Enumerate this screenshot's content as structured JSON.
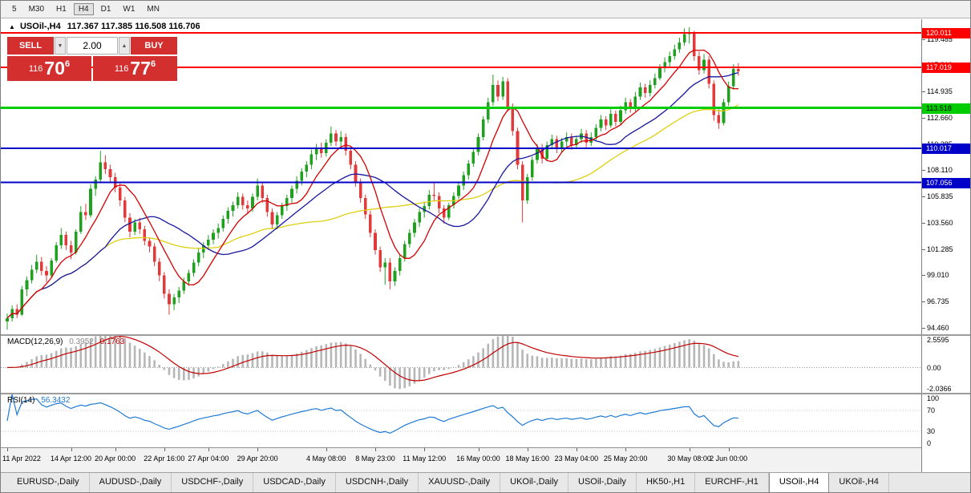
{
  "toolbar": {
    "timeframes": [
      "5",
      "M30",
      "H1",
      "H4",
      "D1",
      "W1",
      "MN"
    ],
    "active_timeframe": "H4"
  },
  "chart": {
    "marker": "▲",
    "title_symbol": "USOil-,H4",
    "title_ohlc": "117.367 117.385 116.508 116.706",
    "trade_panel": {
      "sell_label": "SELL",
      "buy_label": "BUY",
      "volume_value": "2.00",
      "spinner_up": "▲",
      "spinner_down": "▼",
      "bid": {
        "small": "116",
        "big": "70",
        "sup": "6"
      },
      "ask": {
        "small": "116",
        "big": "77",
        "sup": "6"
      }
    },
    "macd_label": {
      "name": "MACD(12,26,9)",
      "main_value": "0.3952",
      "signal_value": "0.1763"
    },
    "rsi_label": {
      "name": "RSI(14)",
      "value": "56.3432"
    }
  },
  "chart_data": {
    "type": "candlestick",
    "title": "USOil-,H4",
    "symbol": "USOil-",
    "timeframe": "H4",
    "last_ohlc": {
      "open": 117.367,
      "high": 117.385,
      "low": 116.508,
      "close": 116.706
    },
    "colors": {
      "up": "#1fa11f",
      "down": "#e13a3a",
      "ma_fast": "#d40000",
      "ma_mid": "#1616a0",
      "ma_slow": "#e0cf10",
      "macd_hist": "#b6b6b6",
      "macd_signal": "#c00000",
      "rsi_line": "#1d7ad4",
      "level_red": "#ff0000",
      "level_green": "#00cc00",
      "level_blue": "#0000c8"
    },
    "y_axis": {
      "min": 93.9,
      "max": 121.2,
      "ticks": [
        "119.485",
        "117.210",
        "114.935",
        "112.660",
        "110.385",
        "108.110",
        "105.835",
        "103.560",
        "101.285",
        "99.010",
        "96.735",
        "94.460"
      ]
    },
    "levels": [
      {
        "price": 120.011,
        "label": "120.011",
        "color": "#ff0000",
        "width": 2,
        "text_color": "#ffffff"
      },
      {
        "price": 117.019,
        "label": "117.019",
        "color": "#ff0000",
        "width": 2,
        "text_color": "#ffffff"
      },
      {
        "price": 113.518,
        "label": "113.518",
        "color": "#00cc00",
        "width": 3,
        "text_color": "#000000"
      },
      {
        "price": 110.017,
        "label": "110.017",
        "color": "#0000c8",
        "width": 2,
        "text_color": "#ffffff"
      },
      {
        "price": 107.056,
        "label": "107.056",
        "color": "#0000c8",
        "width": 2,
        "text_color": "#ffffff"
      }
    ],
    "x_axis": {
      "labels": [
        {
          "text": "11 Apr 2022",
          "index": 0
        },
        {
          "text": "14 Apr 12:00",
          "index": 13
        },
        {
          "text": "20 Apr 00:00",
          "index": 22
        },
        {
          "text": "22 Apr 16:00",
          "index": 32
        },
        {
          "text": "27 Apr 04:00",
          "index": 41
        },
        {
          "text": "29 Apr 20:00",
          "index": 51
        },
        {
          "text": "4 May 08:00",
          "index": 65
        },
        {
          "text": "8 May 23:00",
          "index": 75
        },
        {
          "text": "11 May 12:00",
          "index": 85
        },
        {
          "text": "16 May 00:00",
          "index": 96
        },
        {
          "text": "18 May 16:00",
          "index": 106
        },
        {
          "text": "23 May 04:00",
          "index": 116
        },
        {
          "text": "25 May 20:00",
          "index": 126
        },
        {
          "text": "30 May 08:00",
          "index": 139
        },
        {
          "text": "2 Jun 00:00",
          "index": 147
        }
      ]
    },
    "macd": {
      "params": [
        12,
        26,
        9
      ],
      "range": [
        -2.0366,
        2.5595
      ],
      "ticks": [
        {
          "text": "2.5595",
          "value": 2.5595
        },
        {
          "text": "0.00",
          "value": 0
        },
        {
          "text": "-2.0366",
          "value": -2.0366
        }
      ]
    },
    "rsi": {
      "period": 14,
      "levels": [
        70,
        30
      ],
      "ticks": [
        {
          "text": "100",
          "value": 100
        },
        {
          "text": "70",
          "value": 70
        },
        {
          "text": "30",
          "value": 30
        },
        {
          "text": "0",
          "value": 0
        }
      ]
    },
    "candles": [
      [
        95.0,
        95.7,
        94.3,
        95.3
      ],
      [
        95.3,
        96.4,
        95.0,
        96.1
      ],
      [
        96.1,
        96.5,
        95.3,
        95.6
      ],
      [
        95.6,
        98.1,
        95.5,
        97.8
      ],
      [
        97.8,
        98.9,
        97.2,
        98.6
      ],
      [
        98.6,
        99.9,
        98.3,
        99.5
      ],
      [
        99.5,
        100.8,
        99.2,
        100.2
      ],
      [
        100.2,
        100.6,
        99.0,
        99.4
      ],
      [
        99.4,
        99.8,
        98.4,
        99.0
      ],
      [
        99.0,
        100.5,
        98.8,
        100.3
      ],
      [
        100.3,
        101.9,
        100.1,
        101.6
      ],
      [
        101.6,
        103.1,
        101.3,
        102.5
      ],
      [
        102.5,
        102.8,
        101.2,
        101.6
      ],
      [
        101.6,
        102.0,
        100.4,
        101.0
      ],
      [
        101.0,
        103.0,
        100.8,
        102.8
      ],
      [
        102.8,
        105.0,
        102.6,
        104.5
      ],
      [
        104.5,
        105.2,
        103.8,
        104.2
      ],
      [
        104.2,
        106.9,
        104.0,
        106.5
      ],
      [
        106.5,
        107.6,
        105.9,
        107.3
      ],
      [
        107.3,
        109.8,
        107.0,
        108.8
      ],
      [
        108.8,
        109.4,
        107.8,
        108.2
      ],
      [
        108.2,
        108.6,
        107.0,
        107.5
      ],
      [
        107.5,
        107.9,
        106.2,
        106.6
      ],
      [
        106.6,
        107.0,
        105.0,
        105.5
      ],
      [
        105.5,
        105.8,
        103.6,
        104.0
      ],
      [
        104.0,
        104.4,
        102.3,
        102.8
      ],
      [
        102.8,
        103.9,
        102.5,
        103.6
      ],
      [
        103.6,
        104.0,
        102.6,
        103.0
      ],
      [
        103.0,
        103.3,
        101.6,
        102.0
      ],
      [
        102.0,
        102.3,
        101.0,
        101.5
      ],
      [
        101.5,
        101.8,
        99.8,
        100.2
      ],
      [
        100.2,
        100.5,
        98.5,
        99.0
      ],
      [
        99.0,
        99.3,
        97.0,
        97.4
      ],
      [
        97.4,
        97.8,
        95.6,
        96.5
      ],
      [
        96.5,
        97.4,
        96.0,
        97.1
      ],
      [
        97.1,
        98.0,
        96.6,
        97.7
      ],
      [
        97.7,
        98.8,
        97.4,
        98.5
      ],
      [
        98.5,
        99.5,
        98.1,
        99.2
      ],
      [
        99.2,
        100.4,
        98.9,
        100.1
      ],
      [
        100.1,
        101.4,
        99.8,
        101.0
      ],
      [
        101.0,
        101.9,
        100.5,
        101.6
      ],
      [
        101.6,
        102.5,
        101.2,
        102.1
      ],
      [
        102.1,
        103.0,
        101.7,
        102.7
      ],
      [
        102.7,
        103.5,
        102.2,
        103.1
      ],
      [
        103.1,
        104.2,
        102.8,
        103.9
      ],
      [
        103.9,
        104.9,
        103.5,
        104.6
      ],
      [
        104.6,
        105.4,
        104.1,
        105.1
      ],
      [
        105.1,
        106.2,
        104.8,
        105.8
      ],
      [
        105.8,
        106.1,
        104.7,
        105.1
      ],
      [
        105.1,
        105.5,
        104.3,
        104.8
      ],
      [
        104.8,
        106.1,
        104.5,
        105.8
      ],
      [
        105.8,
        107.4,
        105.5,
        106.8
      ],
      [
        106.8,
        107.1,
        105.3,
        105.7
      ],
      [
        105.7,
        106.0,
        104.1,
        104.5
      ],
      [
        104.5,
        104.8,
        103.0,
        103.4
      ],
      [
        103.4,
        104.5,
        103.0,
        104.2
      ],
      [
        104.2,
        105.3,
        103.9,
        105.0
      ],
      [
        105.0,
        106.0,
        104.6,
        105.7
      ],
      [
        105.7,
        106.8,
        105.3,
        106.5
      ],
      [
        106.5,
        107.6,
        106.1,
        107.2
      ],
      [
        107.2,
        108.3,
        106.8,
        108.0
      ],
      [
        108.0,
        108.9,
        107.5,
        108.6
      ],
      [
        108.6,
        109.9,
        108.2,
        109.5
      ],
      [
        109.5,
        110.4,
        109.0,
        110.1
      ],
      [
        110.1,
        110.5,
        109.2,
        109.6
      ],
      [
        109.6,
        110.8,
        109.3,
        110.5
      ],
      [
        110.5,
        111.9,
        110.2,
        111.3
      ],
      [
        111.3,
        111.6,
        110.2,
        110.6
      ],
      [
        110.6,
        111.5,
        110.0,
        111.0
      ],
      [
        111.0,
        111.3,
        109.4,
        109.8
      ],
      [
        109.8,
        110.1,
        108.2,
        108.6
      ],
      [
        108.6,
        108.9,
        106.7,
        107.1
      ],
      [
        107.1,
        107.4,
        105.3,
        105.7
      ],
      [
        105.7,
        106.0,
        103.9,
        104.3
      ],
      [
        104.3,
        104.6,
        102.3,
        102.7
      ],
      [
        102.7,
        103.0,
        100.8,
        101.2
      ],
      [
        101.2,
        101.5,
        99.3,
        99.7
      ],
      [
        99.7,
        100.5,
        98.2,
        100.1
      ],
      [
        100.1,
        100.5,
        97.8,
        98.5
      ],
      [
        98.5,
        99.7,
        98.1,
        99.4
      ],
      [
        99.4,
        100.8,
        99.0,
        100.5
      ],
      [
        100.5,
        102.0,
        100.2,
        101.7
      ],
      [
        101.7,
        103.0,
        101.4,
        102.7
      ],
      [
        102.7,
        103.9,
        102.3,
        103.6
      ],
      [
        103.6,
        104.8,
        103.2,
        104.5
      ],
      [
        104.5,
        105.4,
        104.0,
        105.0
      ],
      [
        105.0,
        106.4,
        104.7,
        106.0
      ],
      [
        106.0,
        107.0,
        105.5,
        105.9
      ],
      [
        105.9,
        106.2,
        104.4,
        104.8
      ],
      [
        104.8,
        105.1,
        103.5,
        104.0
      ],
      [
        104.0,
        105.3,
        103.8,
        105.1
      ],
      [
        105.1,
        106.2,
        104.8,
        105.9
      ],
      [
        105.9,
        107.1,
        105.6,
        106.8
      ],
      [
        106.8,
        108.0,
        106.4,
        107.7
      ],
      [
        107.7,
        109.0,
        107.3,
        108.7
      ],
      [
        108.7,
        110.0,
        108.4,
        109.7
      ],
      [
        109.7,
        111.3,
        109.4,
        111.0
      ],
      [
        111.0,
        112.8,
        110.7,
        112.5
      ],
      [
        112.5,
        114.4,
        112.2,
        114.0
      ],
      [
        114.0,
        116.4,
        113.7,
        115.5
      ],
      [
        115.5,
        115.9,
        114.1,
        114.5
      ],
      [
        114.5,
        116.2,
        114.2,
        115.8
      ],
      [
        115.8,
        116.1,
        113.2,
        113.6
      ],
      [
        113.6,
        113.9,
        111.1,
        111.5
      ],
      [
        111.5,
        111.8,
        108.2,
        108.6
      ],
      [
        108.6,
        108.9,
        103.6,
        105.5
      ],
      [
        105.5,
        107.8,
        105.2,
        107.5
      ],
      [
        107.5,
        109.3,
        107.2,
        109.0
      ],
      [
        109.0,
        110.4,
        108.7,
        110.1
      ],
      [
        110.1,
        110.4,
        108.7,
        109.1
      ],
      [
        109.1,
        110.6,
        108.9,
        110.3
      ],
      [
        110.3,
        111.2,
        110.0,
        110.8
      ],
      [
        110.8,
        111.1,
        109.6,
        110.0
      ],
      [
        110.0,
        110.9,
        109.7,
        110.6
      ],
      [
        110.6,
        111.4,
        110.2,
        111.0
      ],
      [
        111.0,
        111.3,
        109.9,
        110.3
      ],
      [
        110.3,
        111.1,
        110.0,
        110.8
      ],
      [
        110.8,
        111.7,
        110.5,
        111.3
      ],
      [
        111.3,
        111.6,
        110.1,
        110.5
      ],
      [
        110.5,
        111.4,
        110.2,
        111.0
      ],
      [
        111.0,
        112.1,
        110.7,
        111.8
      ],
      [
        111.8,
        112.9,
        111.5,
        112.5
      ],
      [
        112.5,
        112.8,
        111.6,
        112.0
      ],
      [
        112.0,
        113.4,
        111.8,
        113.0
      ],
      [
        113.0,
        113.3,
        111.9,
        112.3
      ],
      [
        112.3,
        113.7,
        112.0,
        113.3
      ],
      [
        113.3,
        114.4,
        113.0,
        114.0
      ],
      [
        114.0,
        114.3,
        113.1,
        113.5
      ],
      [
        113.5,
        114.9,
        113.2,
        114.5
      ],
      [
        114.5,
        115.7,
        114.2,
        115.3
      ],
      [
        115.3,
        115.6,
        114.4,
        114.8
      ],
      [
        114.8,
        115.9,
        114.5,
        115.5
      ],
      [
        115.5,
        116.5,
        115.2,
        116.1
      ],
      [
        116.1,
        117.3,
        115.9,
        117.0
      ],
      [
        117.0,
        117.9,
        116.6,
        117.5
      ],
      [
        117.5,
        118.4,
        117.1,
        118.0
      ],
      [
        118.0,
        119.0,
        117.7,
        118.6
      ],
      [
        118.6,
        119.6,
        118.3,
        119.2
      ],
      [
        119.2,
        120.4,
        118.9,
        119.9
      ],
      [
        119.9,
        120.5,
        119.1,
        120.0
      ],
      [
        120.0,
        120.2,
        117.6,
        118.0
      ],
      [
        118.0,
        118.4,
        116.4,
        116.8
      ],
      [
        116.8,
        118.2,
        116.5,
        117.7
      ],
      [
        117.7,
        118.0,
        115.2,
        115.6
      ],
      [
        115.6,
        115.9,
        112.4,
        112.9
      ],
      [
        112.9,
        113.4,
        111.7,
        112.2
      ],
      [
        112.2,
        114.3,
        112.0,
        114.0
      ],
      [
        114.0,
        115.8,
        113.7,
        115.4
      ],
      [
        115.4,
        117.3,
        115.1,
        116.9
      ],
      [
        116.9,
        117.4,
        116.3,
        116.7
      ]
    ]
  },
  "tabs": {
    "items": [
      "EURUSD-,Daily",
      "AUDUSD-,Daily",
      "USDCHF-,Daily",
      "USDCAD-,Daily",
      "USDCNH-,Daily",
      "XAUUSD-,Daily",
      "UKOil-,Daily",
      "USOil-,Daily",
      "HK50-,H1",
      "EURCHF-,H1",
      "USOil-,H4",
      "UKOil-,H4"
    ],
    "active": "USOil-,H4"
  }
}
